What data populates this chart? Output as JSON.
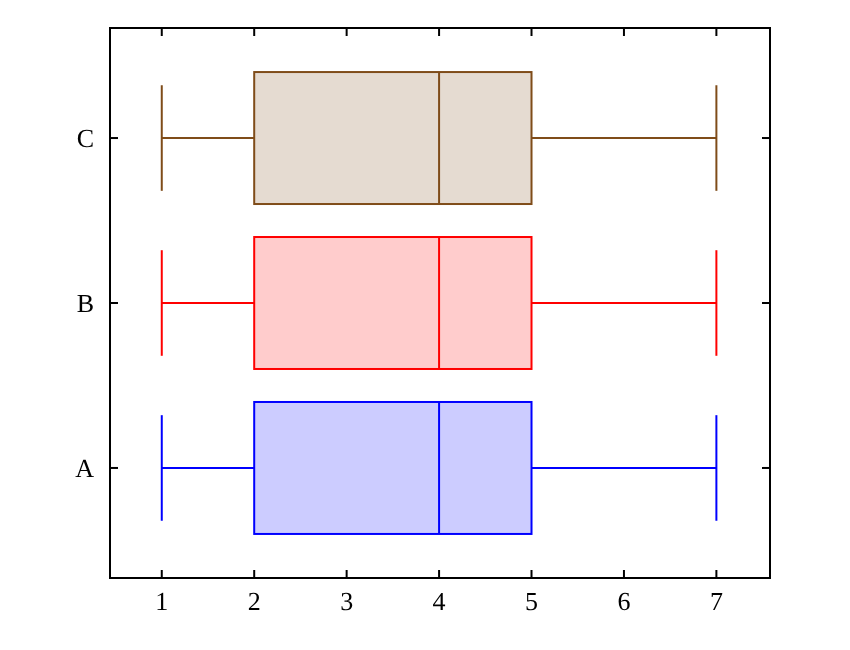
{
  "chart_data": {
    "type": "box",
    "orientation": "horizontal",
    "categories": [
      "C",
      "B",
      "A"
    ],
    "boxes": [
      {
        "low": 1,
        "q1": 2,
        "median": 4,
        "q3": 5,
        "high": 7
      },
      {
        "low": 1,
        "q1": 2,
        "median": 4,
        "q3": 5,
        "high": 7
      },
      {
        "low": 1,
        "q1": 2,
        "median": 4,
        "q3": 5,
        "high": 7
      }
    ],
    "colors": [
      "#7f4c19",
      "#ff0000",
      "#0000ff"
    ],
    "xlim": [
      0.44,
      7.58
    ],
    "xticks": [
      1,
      2,
      3,
      4,
      5,
      6,
      7
    ],
    "grid": false
  }
}
